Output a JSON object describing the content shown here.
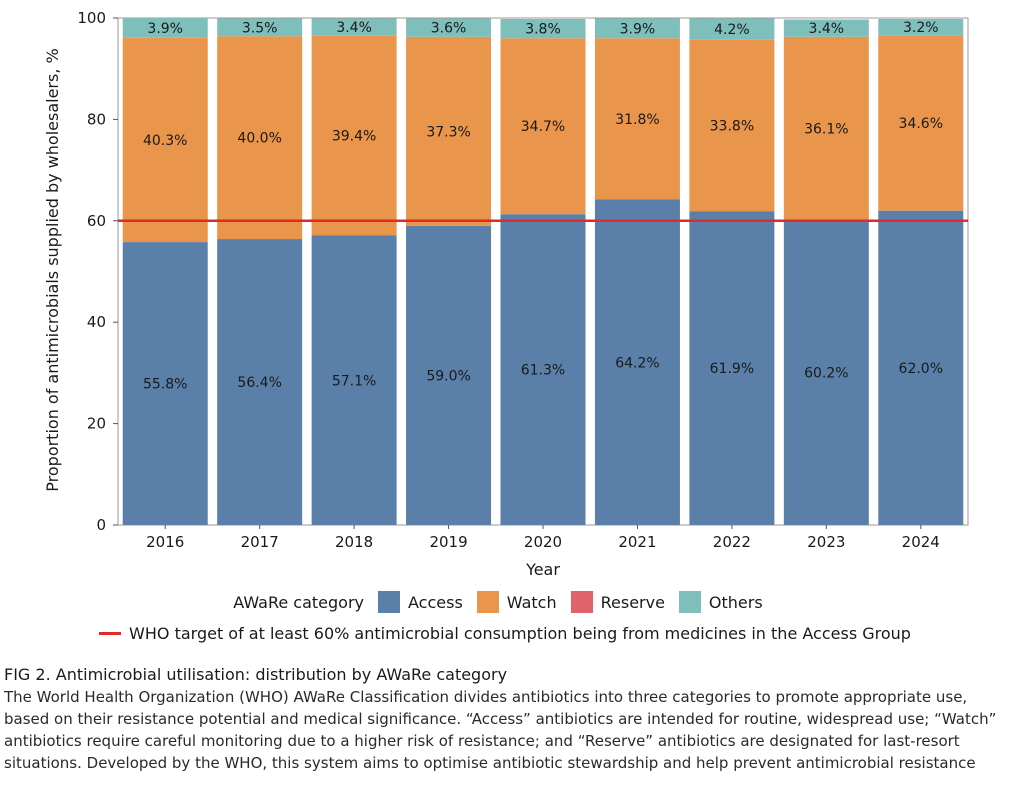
{
  "chart_data": {
    "type": "bar",
    "stacked": true,
    "categories": [
      "2016",
      "2017",
      "2018",
      "2019",
      "2020",
      "2021",
      "2022",
      "2023",
      "2024"
    ],
    "series": [
      {
        "name": "Access",
        "color": "#5a80aa",
        "values": [
          55.8,
          56.4,
          57.1,
          59.0,
          61.3,
          64.2,
          61.9,
          60.2,
          62.0
        ],
        "labels": [
          "55.8%",
          "56.4%",
          "57.1%",
          "59.0%",
          "61.3%",
          "64.2%",
          "61.9%",
          "60.2%",
          "62.0%"
        ]
      },
      {
        "name": "Watch",
        "color": "#e9954b",
        "values": [
          40.3,
          40.0,
          39.4,
          37.3,
          34.7,
          31.8,
          33.8,
          36.1,
          34.6
        ],
        "labels": [
          "40.3%",
          "40.0%",
          "39.4%",
          "37.3%",
          "34.7%",
          "31.8%",
          "33.8%",
          "36.1%",
          "34.6%"
        ]
      },
      {
        "name": "Reserve",
        "color": "#e0626a",
        "values": [
          0,
          0,
          0,
          0,
          0,
          0,
          0,
          0,
          0
        ],
        "labels": []
      },
      {
        "name": "Others",
        "color": "#7ebfbb",
        "values": [
          3.9,
          3.5,
          3.4,
          3.6,
          3.8,
          3.9,
          4.2,
          3.4,
          3.2
        ],
        "labels": [
          "3.9%",
          "3.5%",
          "3.4%",
          "3.6%",
          "3.8%",
          "3.9%",
          "4.2%",
          "3.4%",
          "3.2%"
        ]
      }
    ],
    "ylim": [
      0,
      100
    ],
    "yticks": [
      0,
      20,
      40,
      60,
      80,
      100
    ],
    "xlabel": "Year",
    "ylabel": "Proportion of antimicrobials supplied by wholesalers, %",
    "target_line": {
      "value": 60,
      "color": "#e02a2a"
    },
    "legend_title": "AWaRe category",
    "legend_position": "bottom"
  },
  "legend": {
    "title": "AWaRe category",
    "items": [
      "Access",
      "Watch",
      "Reserve",
      "Others"
    ],
    "target_label": "WHO target of at least 60% antimicrobial consumption being from medicines in the Access Group"
  },
  "caption": {
    "title": "FIG 2. Antimicrobial utilisation: distribution by AWaRe category",
    "text": "The World Health Organization (WHO) AWaRe Classification divides antibiotics into three categories to promote appropriate use, based on their resistance potential and medical significance. “Access” antibiotics are intended for routine, widespread use; “Watch” antibiotics require careful monitoring due to a higher risk of resistance; and “Reserve” antibiotics are designated for last-resort situations. Developed by the WHO, this system aims to optimise antibiotic stewardship and help prevent antimicrobial resistance"
  }
}
